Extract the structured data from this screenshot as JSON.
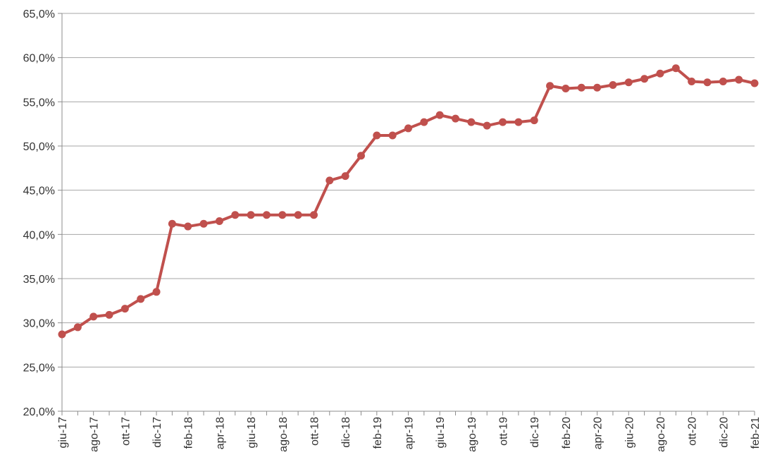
{
  "chart_data": {
    "type": "line",
    "title": "",
    "xlabel": "",
    "ylabel": "",
    "ylim": [
      0.2,
      0.65
    ],
    "y_ticks": [
      "20,0%",
      "25,0%",
      "30,0%",
      "35,0%",
      "40,0%",
      "45,0%",
      "50,0%",
      "55,0%",
      "60,0%",
      "65,0%"
    ],
    "x_tick_labels": [
      "giu-17",
      "ago-17",
      "ott-17",
      "dic-17",
      "feb-18",
      "apr-18",
      "giu-18",
      "ago-18",
      "ott-18",
      "dic-18",
      "feb-19",
      "apr-19",
      "giu-19",
      "ago-19",
      "ott-19",
      "dic-19",
      "feb-20",
      "apr-20",
      "giu-20",
      "ago-20",
      "ott-20",
      "dic-20",
      "feb-21"
    ],
    "grid": true,
    "legend": "none",
    "series": [
      {
        "color": "#c0504d",
        "x": [
          "giu-17",
          "lug-17",
          "ago-17",
          "set-17",
          "ott-17",
          "nov-17",
          "dic-17",
          "gen-18",
          "feb-18",
          "mar-18",
          "apr-18",
          "mag-18",
          "giu-18",
          "lug-18",
          "ago-18",
          "set-18",
          "ott-18",
          "nov-18",
          "dic-18",
          "gen-19",
          "feb-19",
          "mar-19",
          "apr-19",
          "mag-19",
          "giu-19",
          "lug-19",
          "ago-19",
          "set-19",
          "ott-19",
          "nov-19",
          "dic-19",
          "gen-20",
          "feb-20",
          "mar-20",
          "apr-20",
          "mag-20",
          "giu-20",
          "lug-20",
          "ago-20",
          "set-20",
          "ott-20",
          "nov-20",
          "dic-20",
          "gen-21",
          "feb-21"
        ],
        "values": [
          0.287,
          0.295,
          0.307,
          0.309,
          0.316,
          0.327,
          0.335,
          0.412,
          0.409,
          0.412,
          0.415,
          0.422,
          0.422,
          0.422,
          0.422,
          0.422,
          0.422,
          0.461,
          0.466,
          0.489,
          0.512,
          0.512,
          0.52,
          0.527,
          0.535,
          0.531,
          0.527,
          0.523,
          0.527,
          0.527,
          0.529,
          0.568,
          0.565,
          0.566,
          0.566,
          0.569,
          0.572,
          0.576,
          0.582,
          0.588,
          0.573,
          0.572,
          0.573,
          0.575,
          0.571
        ]
      }
    ]
  }
}
